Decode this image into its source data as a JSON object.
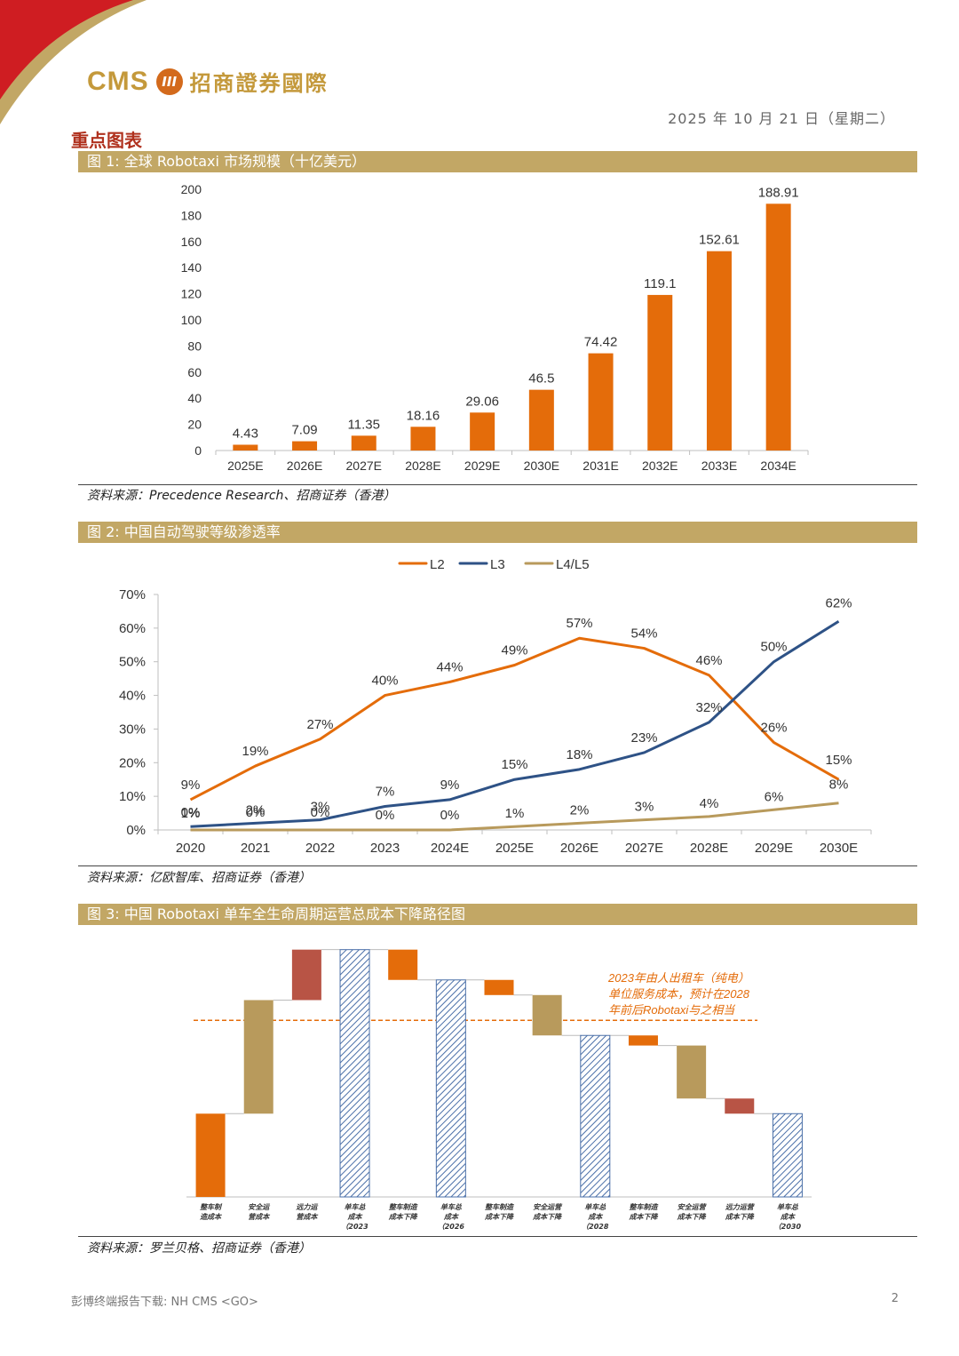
{
  "header": {
    "brand_en": "CMS",
    "brand_logo_text": "III",
    "brand_cn": "招商證券國際",
    "date": "2025 年 10 月 21 日（星期二）",
    "section_title": "重点图表"
  },
  "colors": {
    "gold": "#c2a765",
    "orange": "#e46c0a",
    "blue": "#2e5286",
    "tan": "#b89a5c",
    "red": "#b85445",
    "hatch_blue": "#4a6fa8"
  },
  "figure1": {
    "title": "图 1:  全球 Robotaxi 市场规模（十亿美元）",
    "source": "资料来源：Precedence Research、招商证券（香港）"
  },
  "figure2": {
    "title": "图 2:  中国自动驾驶等级渗透率",
    "source": "资料来源：亿欧智库、招商证券（香港）"
  },
  "figure3": {
    "title": "图 3:  中国 Robotaxi 单车全生命周期运营总成本下降路径图",
    "source": "资料来源：罗兰贝格、招商证券（香港）",
    "annotation": [
      "2023年由人出租车（纯电）",
      "单位服务成本，预计在2028",
      "年前后Robotaxi与之相当"
    ]
  },
  "chart_data": [
    {
      "type": "bar",
      "title": "全球 Robotaxi 市场规模（十亿美元）",
      "categories": [
        "2025E",
        "2026E",
        "2027E",
        "2028E",
        "2029E",
        "2030E",
        "2031E",
        "2032E",
        "2033E",
        "2034E"
      ],
      "values": [
        4.43,
        7.09,
        11.35,
        18.16,
        29.06,
        46.5,
        74.42,
        119.1,
        152.61,
        188.91
      ],
      "value_labels": [
        "4.43",
        "7.09",
        "11.35",
        "18.16",
        "29.06",
        "46.5",
        "74.42",
        "119.1",
        "152.61",
        "188.91"
      ],
      "yticks": [
        "0",
        "20",
        "40",
        "60",
        "80",
        "100",
        "120",
        "140",
        "160",
        "180",
        "200"
      ],
      "ylim": [
        0,
        200
      ]
    },
    {
      "type": "line",
      "title": "中国自动驾驶等级渗透率",
      "categories": [
        "2020",
        "2021",
        "2022",
        "2023",
        "2024E",
        "2025E",
        "2026E",
        "2027E",
        "2028E",
        "2029E",
        "2030E"
      ],
      "yticks": [
        "0%",
        "10%",
        "20%",
        "30%",
        "40%",
        "50%",
        "60%",
        "70%"
      ],
      "ylim": [
        0,
        70
      ],
      "series": [
        {
          "name": "L2",
          "values": [
            9,
            19,
            27,
            40,
            44,
            49,
            57,
            54,
            46,
            26,
            15
          ],
          "labels": [
            "9%",
            "19%",
            "27%",
            "40%",
            "44%",
            "49%",
            "57%",
            "54%",
            "46%",
            "26%",
            "15%"
          ]
        },
        {
          "name": "L3",
          "values": [
            1,
            2,
            3,
            7,
            9,
            15,
            18,
            23,
            32,
            50,
            62
          ],
          "labels": [
            "1%",
            "2%",
            "3%",
            "7%",
            "9%",
            "15%",
            "18%",
            "23%",
            "32%",
            "50%",
            "62%"
          ]
        },
        {
          "name": "L4/L5",
          "values": [
            0,
            0,
            0,
            0,
            0,
            1,
            2,
            3,
            4,
            6,
            8
          ],
          "labels": [
            "0%",
            "0%",
            "0%",
            "0%",
            "0%",
            "1%",
            "2%",
            "3%",
            "4%",
            "6%",
            "8%"
          ]
        }
      ]
    },
    {
      "type": "waterfall",
      "title": "中国 Robotaxi 单车全生命周期运营总成本下降路径图",
      "steps": [
        {
          "label": [
            "整车制",
            "造成本"
          ],
          "start": 0,
          "end": 33,
          "kind": "up-orange"
        },
        {
          "label": [
            "安全运",
            "营成本"
          ],
          "start": 33,
          "end": 78,
          "kind": "up-tan"
        },
        {
          "label": [
            "远力运",
            "营成本"
          ],
          "start": 78,
          "end": 98,
          "kind": "up-red"
        },
        {
          "label": [
            "单车总",
            "成本",
            "（2023"
          ],
          "start": 0,
          "end": 98,
          "kind": "total"
        },
        {
          "label": [
            "整车制造",
            "成本下降"
          ],
          "start": 98,
          "end": 86,
          "kind": "down-orange"
        },
        {
          "label": [
            "单车总",
            "成本",
            "（2026"
          ],
          "start": 0,
          "end": 86,
          "kind": "total"
        },
        {
          "label": [
            "整车制造",
            "成本下降"
          ],
          "start": 86,
          "end": 80,
          "kind": "down-orange"
        },
        {
          "label": [
            "安全运营",
            "成本下降"
          ],
          "start": 80,
          "end": 64,
          "kind": "down-tan"
        },
        {
          "label": [
            "单车总",
            "成本",
            "（2028"
          ],
          "start": 0,
          "end": 64,
          "kind": "total"
        },
        {
          "label": [
            "整车制造",
            "成本下降"
          ],
          "start": 64,
          "end": 60,
          "kind": "down-orange"
        },
        {
          "label": [
            "安全运营",
            "成本下降"
          ],
          "start": 60,
          "end": 39,
          "kind": "down-tan"
        },
        {
          "label": [
            "远力运营",
            "成本下降"
          ],
          "start": 39,
          "end": 33,
          "kind": "down-red"
        },
        {
          "label": [
            "单车总",
            "成本",
            "（2030"
          ],
          "start": 0,
          "end": 33,
          "kind": "total"
        }
      ],
      "reference_line": 70
    }
  ],
  "footer": {
    "left": "彭博终端报告下载: NH CMS <GO>",
    "page": "2"
  }
}
